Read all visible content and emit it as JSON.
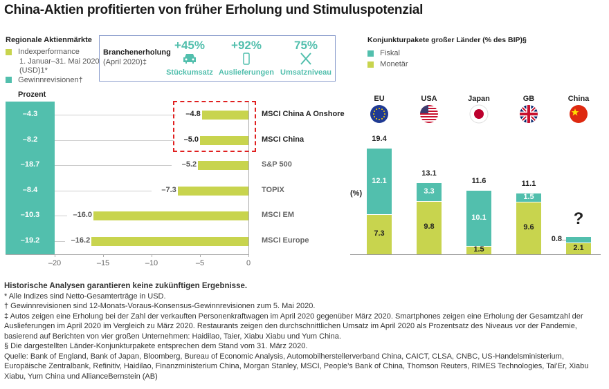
{
  "title": "China-Aktien profitierten von früher Erholung und Stimuluspotenzial",
  "left_panel": {
    "heading": "Regionale Aktienmärkte",
    "legend": [
      {
        "label": "Indexperformance",
        "sub": "1. Januar–31. Mai 2020",
        "sub2": "(USD)1*",
        "color": "#c8d44e"
      },
      {
        "label": "Gewinnrevisionen†",
        "color": "#52bfad"
      }
    ],
    "unit": "Prozent"
  },
  "recovery_box": {
    "heading": "Branchenerholung",
    "sub": "(April 2020)‡",
    "items": [
      {
        "value": "+45%",
        "label": "Stückumsatz",
        "icon": "car-icon"
      },
      {
        "value": "+92%",
        "label": "Auslieferungen",
        "icon": "smartphone-icon"
      },
      {
        "value": "75%",
        "label": "Umsatzniveau",
        "icon": "fork-knife-icon"
      }
    ]
  },
  "chart_data": [
    {
      "type": "bar",
      "orientation": "horizontal",
      "categories": [
        "MSCI China A Onshore",
        "MSCI China",
        "S&P 500",
        "TOPIX",
        "MSCI EM",
        "MSCI Europe"
      ],
      "series": [
        {
          "name": "Indexperformance",
          "values": [
            -4.8,
            -5.0,
            -5.2,
            -7.3,
            -16.0,
            -16.2
          ],
          "labels": [
            "–4.8",
            "–5.0",
            "–5.2",
            "–7.3",
            "–16.0",
            "–16.2"
          ],
          "color": "#c8d44e"
        },
        {
          "name": "Gewinnrevisionen",
          "values": [
            -4.3,
            -8.2,
            -18.7,
            -8.4,
            -10.3,
            -19.2
          ],
          "labels": [
            "–4.3",
            "–8.2",
            "–18.7",
            "–8.4",
            "–10.3",
            "–19.2"
          ],
          "color": "#52bfad"
        }
      ],
      "xlim": [
        -20,
        0
      ],
      "xticks": [
        "–20",
        "–15",
        "–10",
        "–5",
        "0"
      ],
      "xtick_values": [
        -20,
        -15,
        -10,
        -5,
        0
      ],
      "highlight": [
        "MSCI China A Onshore",
        "MSCI China"
      ],
      "highlight_color": "#e02020"
    },
    {
      "type": "bar",
      "stacked": true,
      "title": "Konjunkturpakete großer Länder (% des BIP)§",
      "ylabel": "(%)",
      "categories": [
        "EU",
        "USA",
        "Japan",
        "GB",
        "China"
      ],
      "flags": [
        "eu-flag-icon",
        "usa-flag-icon",
        "japan-flag-icon",
        "uk-flag-icon",
        "china-flag-icon"
      ],
      "series": [
        {
          "name": "Monetär",
          "values": [
            7.3,
            9.8,
            1.5,
            9.6,
            2.1
          ],
          "color": "#c8d44e"
        },
        {
          "name": "Fiskal",
          "values": [
            12.1,
            3.3,
            10.1,
            1.5,
            0.8
          ],
          "color": "#52bfad"
        }
      ],
      "totals": [
        "19.4",
        "13.1",
        "11.6",
        "11.1",
        ""
      ],
      "annotation": "?"
    }
  ],
  "footnotes": {
    "disclaimer": "Historische Analysen garantieren keine zukünftigen Ergebnisse.",
    "lines": [
      "* Alle Indizes sind Netto-Gesamterträge in USD.",
      "† Gewinnrevisionen sind 12-Monats-Voraus-Konsensus-Gewinnrevisionen zum 5. Mai 2020.",
      "‡ Autos zeigen eine Erholung bei der Zahl der verkauften Personenkraftwagen im April 2020 gegenüber März 2020. Smartphones zeigen eine Erholung der Gesamtzahl der Auslieferungen im April 2020 im Vergleich zu März 2020. Restaurants zeigen den durchschnittlichen Umsatz im April 2020 als Prozentsatz des Niveaus vor der Pandemie, basierend auf Berichten von vier großen Unternehmen: Haidilao, Taier, Xiabu Xiabu und Yum China.",
      "§ Die dargestellten Länder-Konjunkturpakete entsprechen dem Stand vom 31. März 2020.",
      "Quelle: Bank of England, Bank of Japan, Bloomberg, Bureau of Economic Analysis, Automobilherstellerverband China, CAICT, CLSA, CNBC, US-Handelsministerium, Europäische Zentralbank, Refinitiv, Haidilao, Finanzministerium China, Morgan Stanley, MSCI, People’s Bank of China, Thomson Reuters, RIMES Technologies, Tai’Er, Xiabu Xiabu, Yum China und AllianceBernstein (AB)"
    ]
  }
}
